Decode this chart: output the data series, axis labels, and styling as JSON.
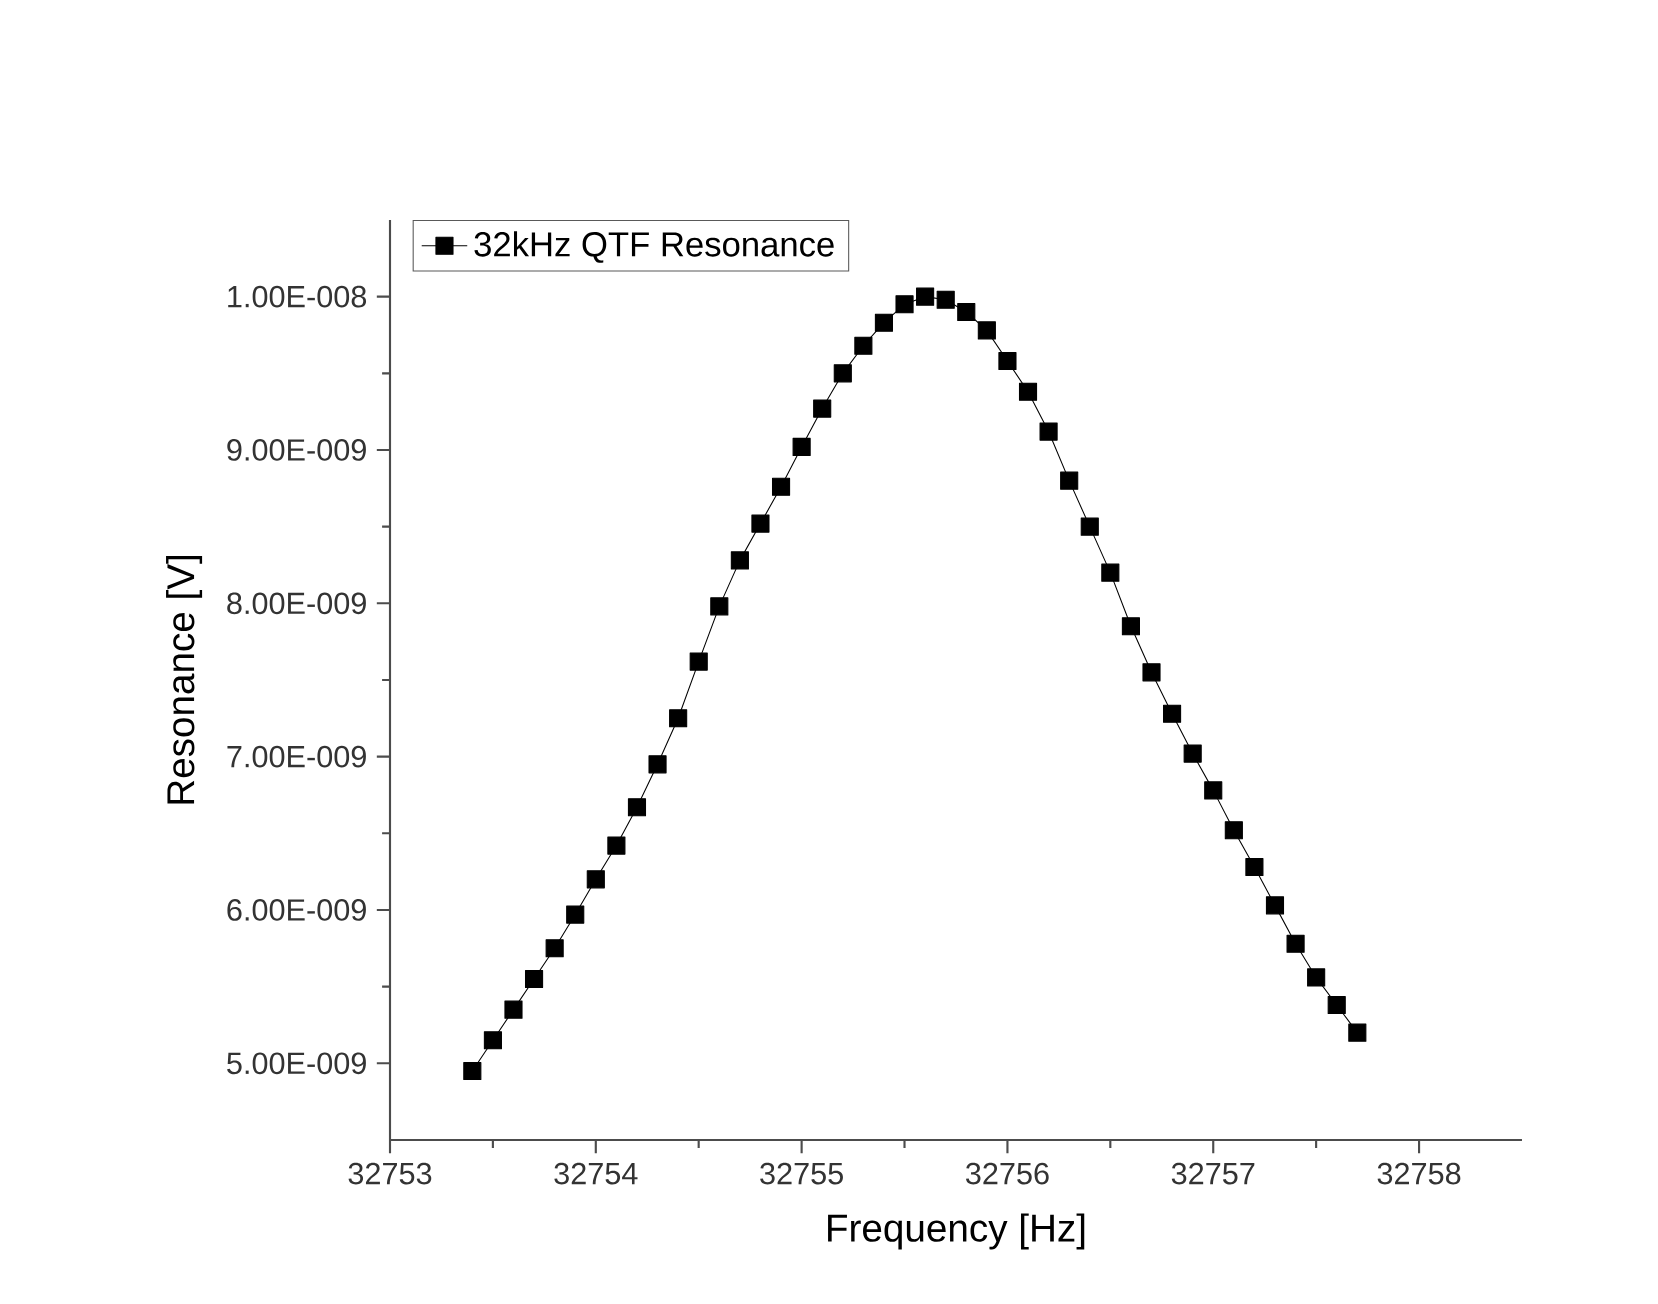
{
  "chart_data": {
    "type": "line",
    "xlabel": "Frequency [Hz]",
    "ylabel": "Resonance [V]",
    "xlim": [
      32753,
      32758.5
    ],
    "ylim": [
      4.5e-09,
      1.05e-08
    ],
    "xticks": [
      32753,
      32754,
      32755,
      32756,
      32757,
      32758
    ],
    "yticks": [
      {
        "value": 5e-09,
        "label": "5.00E-009"
      },
      {
        "value": 6e-09,
        "label": "6.00E-009"
      },
      {
        "value": 7e-09,
        "label": "7.00E-009"
      },
      {
        "value": 8e-09,
        "label": "8.00E-009"
      },
      {
        "value": 9e-09,
        "label": "9.00E-009"
      },
      {
        "value": 1e-08,
        "label": "1.00E-008"
      }
    ],
    "legend": "top left",
    "marker": "square",
    "line_style": "solid",
    "grid": false,
    "series": [
      {
        "name": "32kHz QTF Resonance",
        "color": "#000000",
        "x": [
          32753.4,
          32753.5,
          32753.6,
          32753.7,
          32753.8,
          32753.9,
          32754.0,
          32754.1,
          32754.2,
          32754.3,
          32754.4,
          32754.5,
          32754.6,
          32754.7,
          32754.8,
          32754.9,
          32755.0,
          32755.1,
          32755.2,
          32755.3,
          32755.4,
          32755.5,
          32755.6,
          32755.7,
          32755.8,
          32755.9,
          32756.0,
          32756.1,
          32756.2,
          32756.3,
          32756.4,
          32756.5,
          32756.6,
          32756.7,
          32756.8,
          32756.9,
          32757.0,
          32757.1,
          32757.2,
          32757.3,
          32757.4,
          32757.5,
          32757.6,
          32757.7
        ],
        "values": [
          4.95e-09,
          5.15e-09,
          5.35e-09,
          5.55e-09,
          5.75e-09,
          5.97e-09,
          6.2e-09,
          6.42e-09,
          6.67e-09,
          6.95e-09,
          7.25e-09,
          7.62e-09,
          7.98e-09,
          8.28e-09,
          8.52e-09,
          8.76e-09,
          9.02e-09,
          9.27e-09,
          9.5e-09,
          9.68e-09,
          9.83e-09,
          9.95e-09,
          1e-08,
          9.98e-09,
          9.9e-09,
          9.78e-09,
          9.58e-09,
          9.38e-09,
          9.12e-09,
          8.8e-09,
          8.5e-09,
          8.2e-09,
          7.85e-09,
          7.55e-09,
          7.28e-09,
          7.02e-09,
          6.78e-09,
          6.52e-09,
          6.28e-09,
          6.03e-09,
          5.78e-09,
          5.56e-09,
          5.38e-09,
          5.2e-09
        ]
      }
    ]
  }
}
